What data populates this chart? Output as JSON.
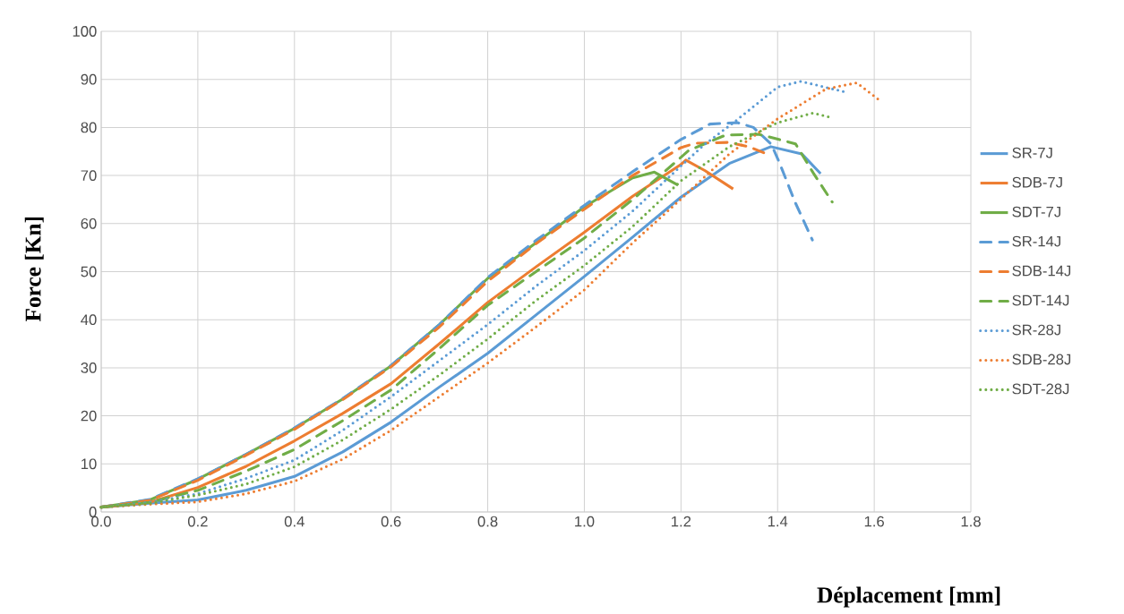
{
  "chart_data": {
    "type": "line",
    "xlabel": "Déplacement [mm]",
    "ylabel": "Force [Kn]",
    "xlim": [
      0,
      1.8
    ],
    "ylim": [
      0,
      100
    ],
    "xticks": [
      {
        "value": 0,
        "label": "0.0"
      },
      {
        "value": 0.2,
        "label": "0.2"
      },
      {
        "value": 0.4,
        "label": "0.4"
      },
      {
        "value": 0.6,
        "label": "0.6"
      },
      {
        "value": 0.8,
        "label": "0.8"
      },
      {
        "value": 1.0,
        "label": "1.0"
      },
      {
        "value": 1.2,
        "label": "1.2"
      },
      {
        "value": 1.4,
        "label": "1.4"
      },
      {
        "value": 1.6,
        "label": "1.6"
      },
      {
        "value": 1.8,
        "label": "1.8"
      }
    ],
    "yticks": [
      0,
      10,
      20,
      30,
      40,
      50,
      60,
      70,
      80,
      90,
      100
    ],
    "grid": true,
    "legend": "right",
    "series": [
      {
        "name": "SR-7J",
        "color": "#5b9bd5",
        "line_style": "solid",
        "x": [
          0,
          0.1,
          0.2,
          0.3,
          0.4,
          0.5,
          0.6,
          0.7,
          0.8,
          0.9,
          1.0,
          1.1,
          1.2,
          1.3,
          1.386,
          1.45,
          1.489
        ],
        "values": [
          1,
          1.8,
          2.5,
          4.5,
          7.4,
          12.5,
          18.7,
          26,
          33,
          41,
          49,
          57.2,
          65.5,
          72.5,
          76,
          74.5,
          70.4
        ]
      },
      {
        "name": "SDB-7J",
        "color": "#ed7d31",
        "line_style": "solid",
        "x": [
          0,
          0.1,
          0.2,
          0.3,
          0.4,
          0.5,
          0.6,
          0.7,
          0.8,
          0.9,
          1.0,
          1.1,
          1.2,
          1.21,
          1.25,
          1.308
        ],
        "values": [
          1,
          2,
          5.1,
          9.5,
          14.8,
          20.5,
          26.7,
          35,
          43.6,
          51,
          58.2,
          65.7,
          72.3,
          73.2,
          71,
          67.2
        ]
      },
      {
        "name": "SDT-7J",
        "color": "#70ad47",
        "line_style": "solid",
        "x": [
          0,
          0.1,
          0.2,
          0.3,
          0.4,
          0.5,
          0.6,
          0.7,
          0.8,
          0.9,
          1.0,
          1.1,
          1.145,
          1.194
        ],
        "values": [
          1,
          2.5,
          6.8,
          12,
          17.4,
          23.5,
          30.4,
          39,
          48.6,
          56,
          63.5,
          69.5,
          70.7,
          68
        ]
      },
      {
        "name": "SR-14J",
        "color": "#5b9bd5",
        "line_style": "dashed",
        "x": [
          0,
          0.1,
          0.2,
          0.3,
          0.4,
          0.5,
          0.6,
          0.7,
          0.8,
          0.9,
          1.0,
          1.1,
          1.2,
          1.26,
          1.317,
          1.35,
          1.387,
          1.404,
          1.436,
          1.472
        ],
        "values": [
          1,
          2.6,
          6.9,
          12,
          17.5,
          23.6,
          30.5,
          39,
          48.8,
          56.5,
          63.8,
          70.8,
          77.5,
          80.7,
          81,
          80,
          76.5,
          72.6,
          64.5,
          56.6
        ]
      },
      {
        "name": "SDB-14J",
        "color": "#ed7d31",
        "line_style": "dashed",
        "x": [
          0,
          0.1,
          0.2,
          0.3,
          0.4,
          0.5,
          0.6,
          0.7,
          0.8,
          0.9,
          1.0,
          1.1,
          1.2,
          1.229,
          1.299,
          1.34,
          1.377
        ],
        "values": [
          1,
          2.4,
          6.6,
          11.8,
          17.2,
          23.4,
          30.2,
          38.5,
          48,
          55.8,
          63,
          70,
          75.8,
          76.7,
          76.9,
          76,
          74.5
        ]
      },
      {
        "name": "SDT-14J",
        "color": "#70ad47",
        "line_style": "dashed",
        "x": [
          0,
          0.1,
          0.2,
          0.3,
          0.4,
          0.5,
          0.6,
          0.7,
          0.8,
          0.9,
          1.0,
          1.1,
          1.216,
          1.292,
          1.36,
          1.437,
          1.474,
          1.513
        ],
        "values": [
          1,
          2,
          4.5,
          8.5,
          13,
          19,
          25.4,
          34,
          43,
          50,
          57,
          65,
          75.2,
          78.4,
          78.6,
          76.6,
          70.5,
          64.5
        ]
      },
      {
        "name": "SR-28J",
        "color": "#5b9bd5",
        "line_style": "dotted",
        "x": [
          0,
          0.1,
          0.2,
          0.3,
          0.4,
          0.5,
          0.6,
          0.7,
          0.8,
          0.9,
          1.0,
          1.1,
          1.2,
          1.248,
          1.31,
          1.373,
          1.4,
          1.448,
          1.539
        ],
        "values": [
          1,
          2,
          3.8,
          7,
          10.8,
          17,
          24,
          31.5,
          39,
          47,
          54.4,
          62.6,
          72,
          76.4,
          81.1,
          86.2,
          88.4,
          89.6,
          87.4
        ]
      },
      {
        "name": "SDB-28J",
        "color": "#ed7d31",
        "line_style": "dotted",
        "x": [
          0,
          0.1,
          0.2,
          0.3,
          0.4,
          0.5,
          0.6,
          0.7,
          0.8,
          0.9,
          1.0,
          1.1,
          1.2,
          1.3,
          1.4,
          1.5,
          1.564,
          1.613
        ],
        "values": [
          1,
          1.6,
          2.1,
          3.8,
          6.4,
          11,
          17,
          24,
          31,
          38.5,
          46.2,
          56,
          65.1,
          74.5,
          81.8,
          88,
          89.3,
          85.5
        ]
      },
      {
        "name": "SDT-28J",
        "color": "#70ad47",
        "line_style": "dotted",
        "x": [
          0,
          0.1,
          0.2,
          0.3,
          0.4,
          0.5,
          0.6,
          0.7,
          0.8,
          0.9,
          1.0,
          1.1,
          1.2,
          1.3,
          1.4,
          1.473,
          1.514
        ],
        "values": [
          1,
          1.8,
          3.5,
          5.8,
          9.4,
          15,
          21.4,
          28.5,
          36,
          44,
          51.3,
          59.4,
          68.9,
          76,
          81,
          83,
          82
        ]
      }
    ]
  }
}
